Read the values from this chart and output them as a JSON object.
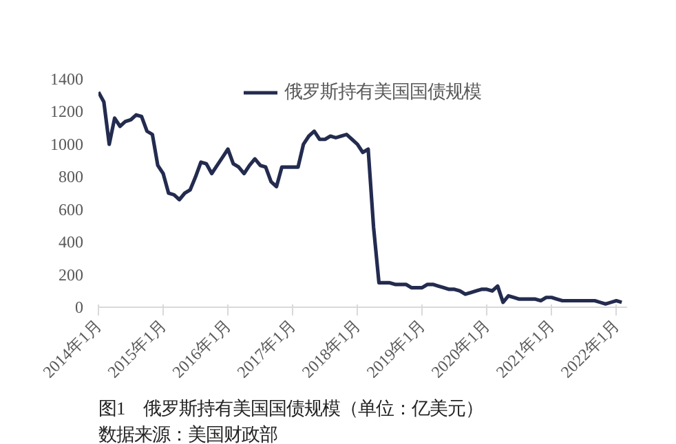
{
  "chart_data": {
    "type": "line",
    "x": [
      "2014-01",
      "2014-02",
      "2014-03",
      "2014-04",
      "2014-05",
      "2014-06",
      "2014-07",
      "2014-08",
      "2014-09",
      "2014-10",
      "2014-11",
      "2014-12",
      "2015-01",
      "2015-02",
      "2015-03",
      "2015-04",
      "2015-05",
      "2015-06",
      "2015-07",
      "2015-08",
      "2015-09",
      "2015-10",
      "2015-11",
      "2015-12",
      "2016-01",
      "2016-02",
      "2016-03",
      "2016-04",
      "2016-05",
      "2016-06",
      "2016-07",
      "2016-08",
      "2016-09",
      "2016-10",
      "2016-11",
      "2016-12",
      "2017-01",
      "2017-02",
      "2017-03",
      "2017-04",
      "2017-05",
      "2017-06",
      "2017-07",
      "2017-08",
      "2017-09",
      "2017-10",
      "2017-11",
      "2017-12",
      "2018-01",
      "2018-02",
      "2018-03",
      "2018-04",
      "2018-05",
      "2018-06",
      "2018-07",
      "2018-08",
      "2018-09",
      "2018-10",
      "2018-11",
      "2018-12",
      "2019-01",
      "2019-02",
      "2019-03",
      "2019-04",
      "2019-05",
      "2019-06",
      "2019-07",
      "2019-08",
      "2019-09",
      "2019-10",
      "2019-11",
      "2019-12",
      "2020-01",
      "2020-02",
      "2020-03",
      "2020-04",
      "2020-05",
      "2020-06",
      "2020-07",
      "2020-08",
      "2020-09",
      "2020-10",
      "2020-11",
      "2020-12",
      "2021-01",
      "2021-02",
      "2021-03",
      "2021-04",
      "2021-05",
      "2021-06",
      "2021-07",
      "2021-08",
      "2021-09",
      "2021-10",
      "2021-11",
      "2021-12",
      "2022-01",
      "2022-02"
    ],
    "series": [
      {
        "name": "俄罗斯持有美国国债规模",
        "color": "#232b4f",
        "values": [
          1320,
          1260,
          1000,
          1160,
          1110,
          1140,
          1150,
          1180,
          1170,
          1080,
          1060,
          870,
          820,
          700,
          690,
          660,
          700,
          720,
          800,
          890,
          880,
          820,
          870,
          920,
          970,
          880,
          860,
          820,
          870,
          910,
          870,
          860,
          770,
          740,
          860,
          860,
          860,
          860,
          1000,
          1050,
          1080,
          1030,
          1030,
          1050,
          1040,
          1050,
          1060,
          1030,
          1000,
          950,
          970,
          490,
          150,
          150,
          150,
          140,
          140,
          140,
          120,
          120,
          120,
          140,
          140,
          130,
          120,
          110,
          110,
          100,
          80,
          90,
          100,
          110,
          110,
          100,
          130,
          30,
          70,
          60,
          50,
          50,
          50,
          50,
          40,
          60,
          60,
          50,
          40,
          40,
          40,
          40,
          40,
          40,
          40,
          30,
          20,
          30,
          40,
          30
        ]
      }
    ],
    "xlim": [
      "2014-01",
      "2022-03"
    ],
    "xticks": [
      {
        "value": "2014-01",
        "label": "2014年1月"
      },
      {
        "value": "2015-01",
        "label": "2015年1月"
      },
      {
        "value": "2016-01",
        "label": "2016年1月"
      },
      {
        "value": "2017-01",
        "label": "2017年1月"
      },
      {
        "value": "2018-01",
        "label": "2018年1月"
      },
      {
        "value": "2019-01",
        "label": "2019年1月"
      },
      {
        "value": "2020-01",
        "label": "2020年1月"
      },
      {
        "value": "2021-01",
        "label": "2021年1月"
      },
      {
        "value": "2022-01",
        "label": "2022年1月"
      }
    ],
    "ylim": [
      0,
      1400
    ],
    "yticks": [
      0,
      200,
      400,
      600,
      800,
      1000,
      1200,
      1400
    ],
    "grid": false,
    "legend": "top",
    "marker": "none",
    "line_style": "solid",
    "annotations": [
      "图1　俄罗斯持有美国国债规模（单位：亿美元）",
      "数据来源：美国财政部"
    ]
  }
}
